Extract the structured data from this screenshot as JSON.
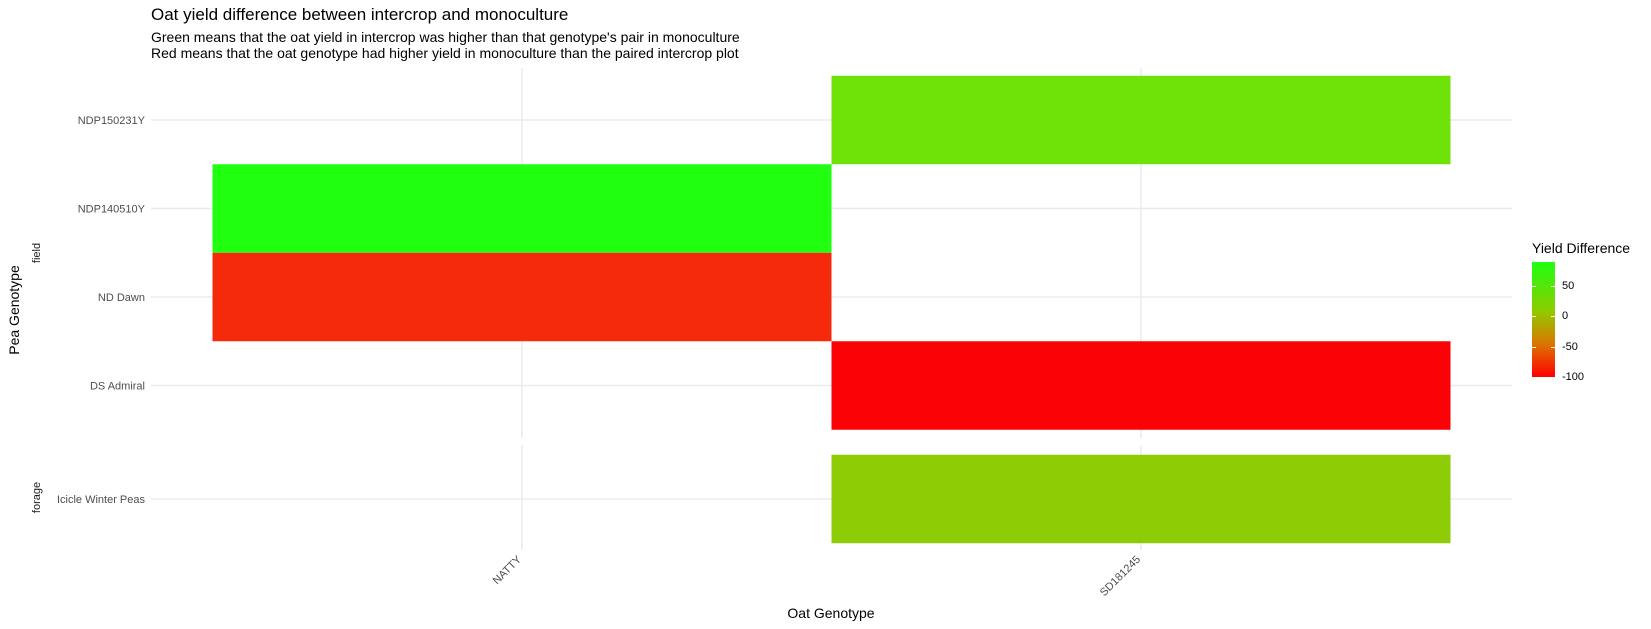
{
  "title": "Oat yield difference between intercrop and monoculture",
  "subtitle_line1": "Green means that the oat yield in intercrop was higher than that genotype's pair in monoculture",
  "subtitle_line2": "Red means that the oat genotype had higher yield in monoculture than the paired intercrop plot",
  "chart_data": {
    "type": "heatmap",
    "xlabel": "Oat Genotype",
    "ylabel": "Pea Genotype",
    "x_categories": [
      "NATTY",
      "SD181245"
    ],
    "facets": [
      {
        "name": "field",
        "y_categories": [
          "DS Admiral",
          "ND Dawn",
          "NDP140510Y",
          "NDP150231Y"
        ],
        "cells": [
          {
            "x": "NATTY",
            "y": "NDP140510Y",
            "value": 90,
            "color": "#21ff10"
          },
          {
            "x": "NATTY",
            "y": "ND Dawn",
            "value": -85,
            "color": "#f52a0a"
          },
          {
            "x": "SD181245",
            "y": "NDP150231Y",
            "value": 40,
            "color": "#6fe308"
          },
          {
            "x": "SD181245",
            "y": "DS Admiral",
            "value": -100,
            "color": "#fb0207"
          }
        ]
      },
      {
        "name": "forage",
        "y_categories": [
          "Icicle Winter Peas"
        ],
        "cells": [
          {
            "x": "SD181245",
            "y": "Icicle Winter Peas",
            "value": 15,
            "color": "#8ecd06"
          }
        ]
      }
    ],
    "legend": {
      "title": "Yield Difference",
      "ticks": [
        50,
        0,
        -50,
        -100
      ],
      "range": [
        -100,
        90
      ],
      "colors": [
        "#1eff10",
        "#8ccd00",
        "#d97a00",
        "#ff0000"
      ],
      "position": "right"
    },
    "grid": true
  }
}
